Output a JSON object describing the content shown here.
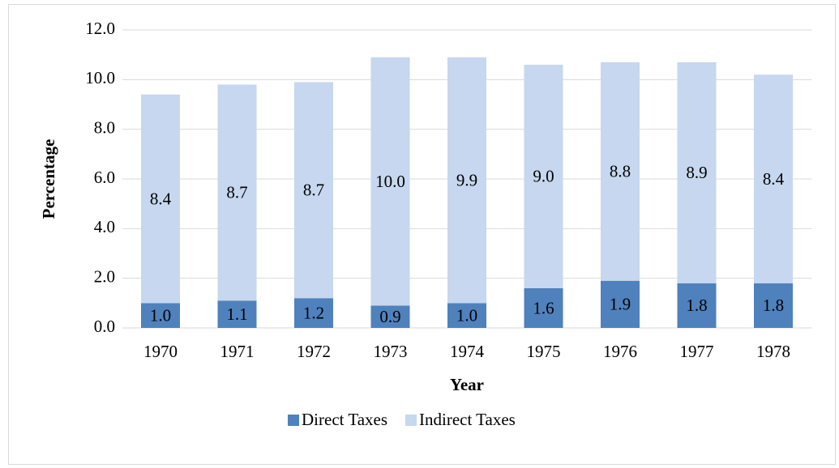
{
  "chart_data": {
    "type": "stacked_bar",
    "x_label": "Year",
    "y_label": "Percentage",
    "categories": [
      "1970",
      "1971",
      "1972",
      "1973",
      "1974",
      "1975",
      "1976",
      "1977",
      "1978"
    ],
    "series": [
      {
        "name": "Direct Taxes",
        "color": "#4f81bd",
        "values": [
          1.0,
          1.1,
          1.2,
          0.9,
          1.0,
          1.6,
          1.9,
          1.8,
          1.8
        ],
        "value_labels": [
          "1.0",
          "1.1",
          "1.2",
          "0.9",
          "1.0",
          "1.6",
          "1.9",
          "1.8",
          "1.8"
        ]
      },
      {
        "name": "Indirect Taxes",
        "color": "#c6d7ef",
        "values": [
          8.4,
          8.7,
          8.7,
          10.0,
          9.9,
          9.0,
          8.8,
          8.9,
          8.4
        ],
        "value_labels": [
          "8.4",
          "8.7",
          "8.7",
          "10.0",
          "9.9",
          "9.0",
          "8.8",
          "8.9",
          "8.4"
        ]
      }
    ],
    "ylim": [
      0,
      12
    ],
    "yticks": [
      {
        "value": 0,
        "label": "0.0"
      },
      {
        "value": 2,
        "label": "2.0"
      },
      {
        "value": 4,
        "label": "4.0"
      },
      {
        "value": 6,
        "label": "6.0"
      },
      {
        "value": 8,
        "label": "8.0"
      },
      {
        "value": 10,
        "label": "10.0"
      },
      {
        "value": 12,
        "label": "12.0"
      }
    ],
    "grid": true,
    "legend": "bottom"
  }
}
